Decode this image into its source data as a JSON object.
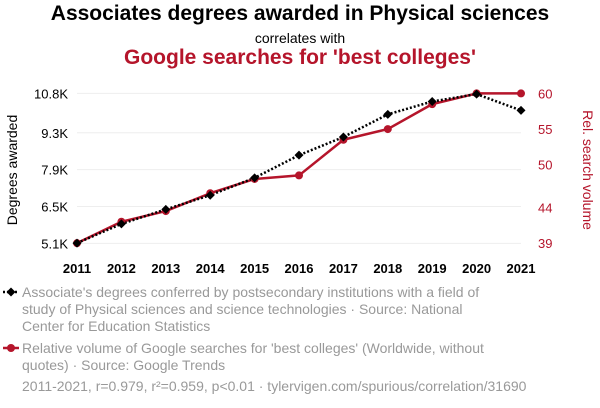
{
  "chart_data": {
    "type": "line",
    "title": "Associates degrees awarded in Physical sciences",
    "subtitle": "correlates with",
    "title2": "Google searches for 'best colleges'",
    "x": [
      2011,
      2012,
      2013,
      2014,
      2015,
      2016,
      2017,
      2018,
      2019,
      2020,
      2021
    ],
    "left_axis": {
      "label": "Degrees awarded",
      "ylim": [
        5000,
        10850
      ],
      "ticks": [
        5100,
        6500,
        7900,
        9300,
        10800
      ],
      "tick_labels": [
        "5.1K",
        "6.5K",
        "7.9K",
        "9.3K",
        "10.8K"
      ]
    },
    "right_axis": {
      "label": "Rel. search volume",
      "ylim": [
        38.6,
        60.2
      ],
      "ticks": [
        39,
        44,
        50,
        55,
        60
      ],
      "tick_labels": [
        "39",
        "44",
        "50",
        "55",
        "60"
      ]
    },
    "series": [
      {
        "name": "Associate's degrees conferred by postsecondary institutions with a field of study of Physical sciences and science technologies · Source: National Center for Education Statistics",
        "axis": "left",
        "color": "#000000",
        "style": "dotted",
        "marker": "diamond",
        "values": [
          5110,
          5840,
          6390,
          6930,
          7590,
          8450,
          9140,
          10000,
          10490,
          10770,
          10150
        ]
      },
      {
        "name": "Relative volume of Google searches for 'best colleges' (Worldwide, without quotes) · Source: Google Trends",
        "axis": "right",
        "color": "#b5152b",
        "style": "solid",
        "marker": "circle",
        "values": [
          39,
          42,
          43.5,
          46,
          48,
          48.5,
          53.5,
          55,
          58.5,
          60,
          60
        ]
      }
    ],
    "footer": "2011-2021, r=0.979, r²=0.959, p<0.01 · tylervigen.com/spurious/correlation/31690"
  }
}
